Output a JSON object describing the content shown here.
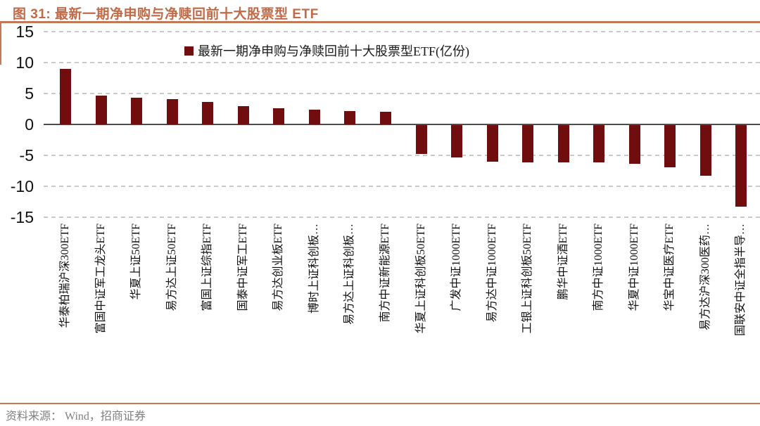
{
  "figure": {
    "title": "图 31: 最新一期净申购与净赎回前十大股票型 ETF",
    "source": "资料来源： Wind，招商证券"
  },
  "chart_data": {
    "type": "bar",
    "title": "最新一期净申购与净赎回前十大股票型 ETF",
    "legend": [
      "最新一期净申购与净赎回前十大股票型ETF(亿份)"
    ],
    "legend_position": "top-center",
    "categories": [
      "华泰柏瑞沪深300ETF",
      "富国中证军工龙头ETF",
      "华夏上证50ETF",
      "易方达上证50ETF",
      "富国上证综指ETF",
      "国泰中证军工ETF",
      "易方达创业板ETF",
      "博时上证科创板…",
      "易方达上证科创板…",
      "南方中证新能源ETF",
      "华夏上证科创板50ETF",
      "广发中证1000ETF",
      "易方达中证1000ETF",
      "工银上证科创板50ETF",
      "鹏华中证酒ETF",
      "南方中证1000ETF",
      "华夏中证1000ETF",
      "华宝中证医疗ETF",
      "易方达沪深300医药…",
      "国联安中证全指半导…"
    ],
    "values": [
      9.0,
      4.7,
      4.3,
      4.1,
      3.6,
      3.0,
      2.6,
      2.4,
      2.2,
      2.1,
      -4.7,
      -5.2,
      -5.9,
      -6.0,
      -6.0,
      -6.0,
      -6.2,
      -6.8,
      -8.2,
      -13.2
    ],
    "ylim": [
      -15,
      15
    ],
    "yticks": [
      15,
      10,
      5,
      0,
      -5,
      -10,
      -15
    ],
    "grid": "horizontal-dashed",
    "bar_color": "#6f0d0f",
    "gridline_color": "#c9c9c9",
    "axis_color": "#4d4d4d"
  },
  "colors": {
    "accent": "#c06a48",
    "rule": "#c07a58",
    "bar": "#6f0d0f",
    "source_text": "#808080"
  }
}
